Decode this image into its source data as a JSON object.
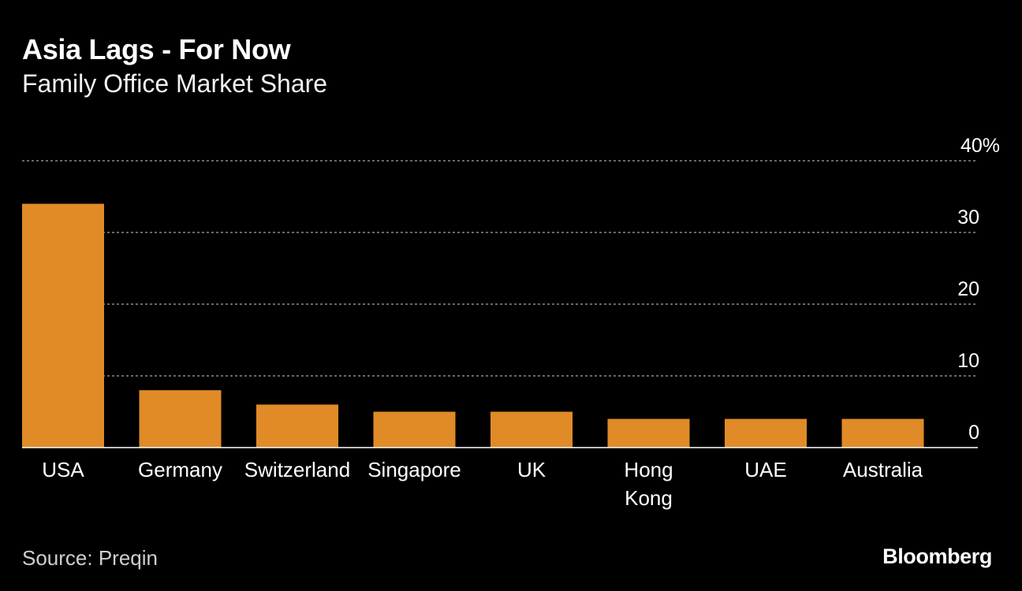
{
  "header": {
    "title": "Asia Lags - For Now",
    "subtitle": "Family Office Market Share"
  },
  "footer": {
    "source": "Source: Preqin",
    "brand": "Bloomberg"
  },
  "colors": {
    "bar": "#E08B27",
    "background": "#000000",
    "grid": "#8a8a8a",
    "axis": "#ffffff",
    "text": "#ffffff",
    "source_text": "#cfcfcf"
  },
  "chart_data": {
    "type": "bar",
    "title": "Asia Lags - For Now",
    "subtitle": "Family Office Market Share",
    "categories": [
      "USA",
      "Germany",
      "Switzerland",
      "Singapore",
      "UK",
      "Hong Kong",
      "UAE",
      "Australia"
    ],
    "category_label_lines": [
      [
        "USA"
      ],
      [
        "Germany"
      ],
      [
        "Switzerland"
      ],
      [
        "Singapore"
      ],
      [
        "UK"
      ],
      [
        "Hong",
        "Kong"
      ],
      [
        "UAE"
      ],
      [
        "Australia"
      ]
    ],
    "series": [
      {
        "name": "Family Office Market Share",
        "values": [
          34,
          8,
          6,
          5,
          5,
          4,
          4,
          4
        ]
      }
    ],
    "ylim": [
      0,
      40
    ],
    "yticks": [
      0,
      10,
      20,
      30,
      40
    ],
    "ytick_labels": [
      "0",
      "10",
      "20",
      "30",
      "40%"
    ],
    "y_axis_side": "right",
    "grid": "dotted horizontal",
    "xlabel": "",
    "ylabel": "",
    "source": "Source: Preqin"
  }
}
